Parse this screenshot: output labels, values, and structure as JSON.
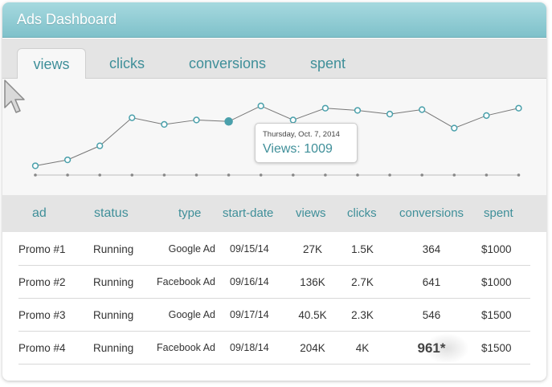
{
  "app": {
    "title": "Ads Dashboard"
  },
  "tabs": [
    {
      "label": "views",
      "active": true
    },
    {
      "label": "clicks",
      "active": false
    },
    {
      "label": "conversions",
      "active": false
    },
    {
      "label": "spent",
      "active": false
    }
  ],
  "tooltip": {
    "date": "Thursday, Oct. 7, 2014",
    "value": "Views: 1009"
  },
  "colors": {
    "accent": "#3f8f99",
    "header": "#8ccbd3",
    "line": "#777777",
    "point": "#4aa0ab"
  },
  "chart_data": {
    "type": "line",
    "grid": false,
    "series": [
      {
        "values": [
          0.06,
          0.14,
          0.33,
          0.71,
          0.62,
          0.68,
          0.66,
          0.87,
          0.68,
          0.84,
          0.81,
          0.76,
          0.82,
          0.57,
          0.74,
          0.84
        ]
      }
    ],
    "highlighted_index": 6
  },
  "table": {
    "headers": [
      "ad",
      "status",
      "type",
      "start-date",
      "views",
      "clicks",
      "conversions",
      "spent"
    ],
    "rows": [
      {
        "ad": "Promo #1",
        "status": "Running",
        "type": "Google Ad",
        "start": "09/15/14",
        "views": "27K",
        "clicks": "1.5K",
        "conversions": "364",
        "spent": "$1000"
      },
      {
        "ad": "Promo #2",
        "status": "Running",
        "type": "Facebook Ad",
        "start": "09/16/14",
        "views": "136K",
        "clicks": "2.7K",
        "conversions": "641",
        "spent": "$1000"
      },
      {
        "ad": "Promo #3",
        "status": "Running",
        "type": "Google Ad",
        "start": "09/17/14",
        "views": "40.5K",
        "clicks": "2.3K",
        "conversions": "546",
        "spent": "$1500"
      },
      {
        "ad": "Promo #4",
        "status": "Running",
        "type": "Facebook Ad",
        "start": "09/18/14",
        "views": "204K",
        "clicks": "4K",
        "conversions": "961*",
        "spent": "$1500"
      }
    ]
  }
}
